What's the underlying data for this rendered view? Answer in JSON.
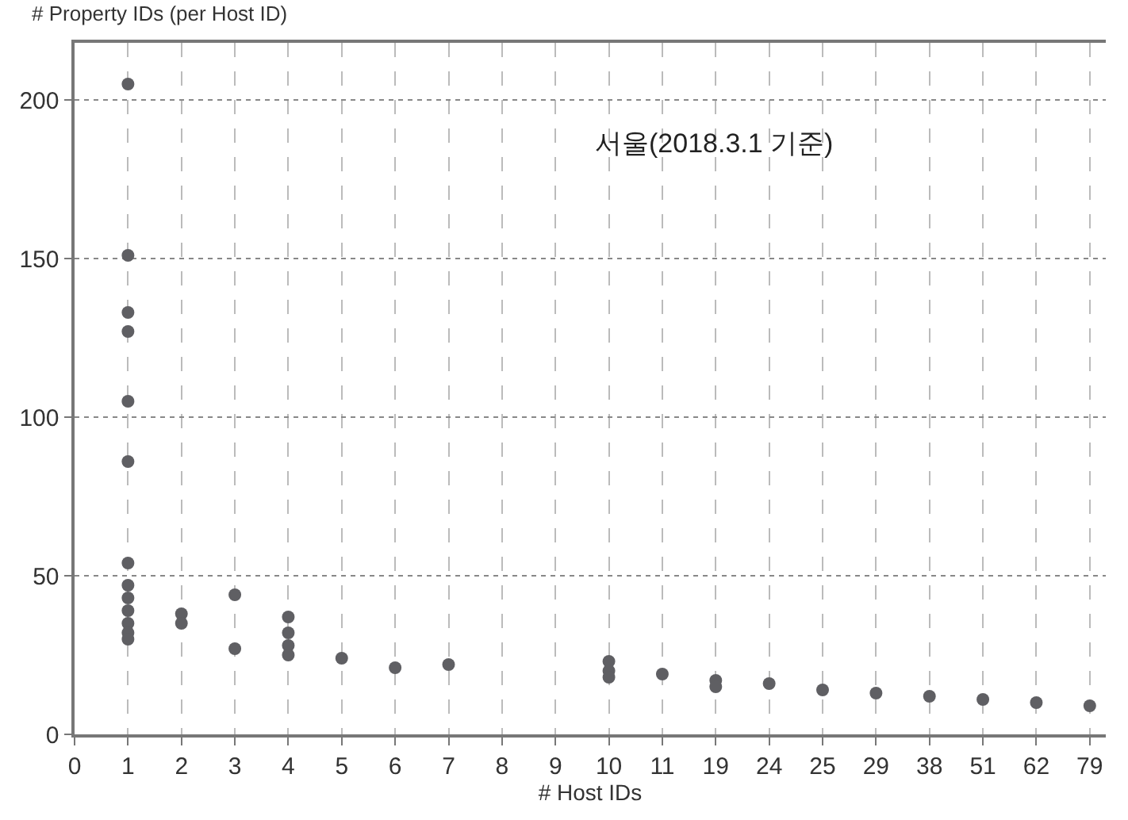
{
  "chart_data": {
    "type": "scatter",
    "ylabel": "# Property IDs (per Host ID)",
    "xlabel": "# Host IDs",
    "annotations": [
      "서울(2018.3.1 기준)"
    ],
    "categories": [
      "0",
      "1",
      "2",
      "3",
      "4",
      "5",
      "6",
      "7",
      "8",
      "9",
      "10",
      "11",
      "19",
      "24",
      "25",
      "29",
      "38",
      "51",
      "62",
      "79"
    ],
    "series": [
      {
        "color": "#5f5f63",
        "x": [
          "1",
          "1",
          "1",
          "1",
          "1",
          "1",
          "1",
          "1",
          "1",
          "1",
          "1",
          "1",
          "1",
          "2",
          "2",
          "2",
          "3",
          "3",
          "3",
          "4",
          "4",
          "4",
          "4",
          "5",
          "6",
          "7",
          "10",
          "10",
          "10",
          "11",
          "19",
          "19",
          "24",
          "25",
          "29",
          "38",
          "51",
          "62",
          "79"
        ],
        "values": [
          205,
          151,
          133,
          127,
          105,
          86,
          54,
          47,
          43,
          39,
          35,
          32,
          30,
          38,
          35,
          null,
          44,
          27,
          null,
          37,
          32,
          28,
          25,
          24,
          21,
          22,
          23,
          20,
          18,
          19,
          17,
          15,
          16,
          14,
          13,
          12,
          11,
          10,
          9
        ]
      }
    ],
    "ylim": [
      0,
      218
    ],
    "yticks": [
      0,
      50,
      100,
      150,
      200
    ],
    "grid": true,
    "marker": "circle"
  }
}
